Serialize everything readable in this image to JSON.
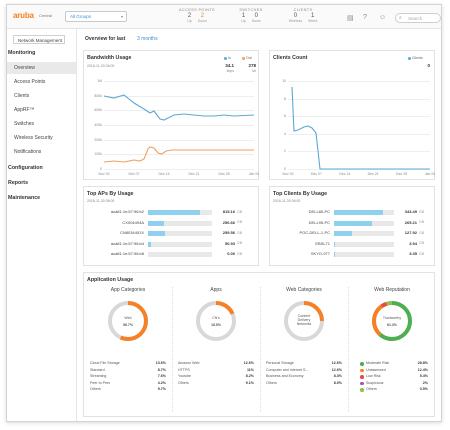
{
  "topbar": {
    "logo": "aruba",
    "logo_sub": "Central",
    "group_selected": "All Groups",
    "access_points": {
      "title": "ACCESS POINTS",
      "values": [
        "2",
        "2"
      ],
      "labels": [
        "Up",
        "Down"
      ]
    },
    "switches": {
      "title": "SWITCHES",
      "values": [
        "1",
        "0"
      ],
      "labels": [
        "Up",
        "Down"
      ]
    },
    "clients": {
      "title": "CLIENTS",
      "values": [
        "0",
        "1"
      ],
      "labels": [
        "Wireless",
        "Wired"
      ]
    },
    "search_placeholder": "Search"
  },
  "sidebar": {
    "net_mgmt": "Network Management",
    "monitoring": "Monitoring",
    "items": [
      "Overview",
      "Access Points",
      "Clients",
      "AppRF™",
      "Switches",
      "Wireless Security",
      "Notifications"
    ],
    "configuration": "Configuration",
    "reports": "Reports",
    "maintenance": "Maintenance"
  },
  "overview": {
    "label": "Overview for last",
    "range": "3 months"
  },
  "bandwidth": {
    "title": "Bandwidth Usage",
    "subtitle": "2016-11-30 06:00",
    "legend": [
      "In",
      "Out"
    ],
    "in_value": "34.1",
    "in_unit": "kbps",
    "out_value": "278",
    "out_unit": "kb",
    "y_ticks": [
      "1M",
      "800k",
      "600k",
      "400k",
      "200k",
      "100k",
      "0"
    ],
    "x_ticks": [
      "Nov 30",
      "Dec 07",
      "Dec 14",
      "Dec 21",
      "Dec 28",
      "Jan 04"
    ]
  },
  "clients_count": {
    "title": "Clients Count",
    "legend": "Clients",
    "value": "0",
    "y_ticks": [
      "10",
      "8",
      "6",
      "4",
      "2",
      "0"
    ],
    "x_ticks": [
      "Nov 30",
      "Dec 07",
      "Dec 14",
      "Dec 21",
      "Dec 28",
      "Jan 04"
    ]
  },
  "top_aps": {
    "title": "Top APs By Usage",
    "subtitle": "2016-11-30 06:00",
    "rows": [
      {
        "name": "aca81:1e:57:96:b2",
        "value": "815.16",
        "unit": "GB"
      },
      {
        "name": "CX004494A",
        "value": "256.66",
        "unit": "GB"
      },
      {
        "name": "CN8034451X",
        "value": "259.56",
        "unit": "GB"
      },
      {
        "name": "aca81:1e:57:96:b4",
        "value": "50.93",
        "unit": "GB"
      },
      {
        "name": "aca81:1e:57:96:b8",
        "value": "0.00",
        "unit": "GB"
      }
    ]
  },
  "top_clients": {
    "title": "Top Clients By Usage",
    "subtitle": "2016-11-30 06:00",
    "rows": [
      {
        "name": "DELL85-PC",
        "value": "343.49",
        "unit": "GB"
      },
      {
        "name": "DELL95-PC",
        "value": "265.21",
        "unit": "GB"
      },
      {
        "name": "POC-DELL-1-PC",
        "value": "127.92",
        "unit": "GB"
      },
      {
        "name": "EBSL71",
        "value": "3.94",
        "unit": "GB"
      },
      {
        "name": "SKYO-977",
        "value": "3.35",
        "unit": "GB"
      }
    ]
  },
  "app_usage": {
    "title": "Application Usage",
    "panels": [
      {
        "title": "App Categories",
        "center": [
          "Web",
          "56.7%"
        ],
        "rows": [
          [
            "Cloud File Storage",
            "13.6%"
          ],
          [
            "Standard",
            "8.7%"
          ],
          [
            "Streaming",
            "7.6%"
          ],
          [
            "Peer to Peer",
            "4.2%"
          ],
          [
            "Others",
            "9.7%"
          ]
        ]
      },
      {
        "title": "Apps",
        "center": [
          "CN's",
          "18.5%"
        ],
        "rows": [
          [
            "Amazon Web",
            "12.6%"
          ],
          [
            "HTTPS",
            "11%"
          ],
          [
            "Youtube",
            "8.2%"
          ],
          [
            "Others",
            "9.1%"
          ]
        ]
      },
      {
        "title": "Web Categories",
        "center": [
          "Content",
          "Delivery",
          "Networks"
        ],
        "rows": [
          [
            "Personal Storage",
            "12.6%"
          ],
          [
            "Computer and Internet S...",
            "12.6%"
          ],
          [
            "Business and Economy",
            "8.3%"
          ],
          [
            "Others",
            "8.0%"
          ]
        ]
      },
      {
        "title": "Web Reputation",
        "center": [
          "Trustworthy",
          "61.3%"
        ],
        "rows": [
          [
            "Moderate Risk",
            "28.8%"
          ],
          [
            "Unassessed",
            "12.4%"
          ],
          [
            "Low Risk",
            "5.4%"
          ],
          [
            "Suspicious",
            "2%"
          ],
          [
            "Others",
            "0.5%"
          ]
        ]
      }
    ],
    "reputation_colors": [
      "#4caf50",
      "#f58025",
      "#e74c3c",
      "#9b59b6",
      "#8bc34a"
    ]
  },
  "colors": {
    "accent": "#f58025",
    "in_series": "#5aa9d6",
    "out_series": "#f0a060",
    "bar": "#8fd0ee"
  }
}
